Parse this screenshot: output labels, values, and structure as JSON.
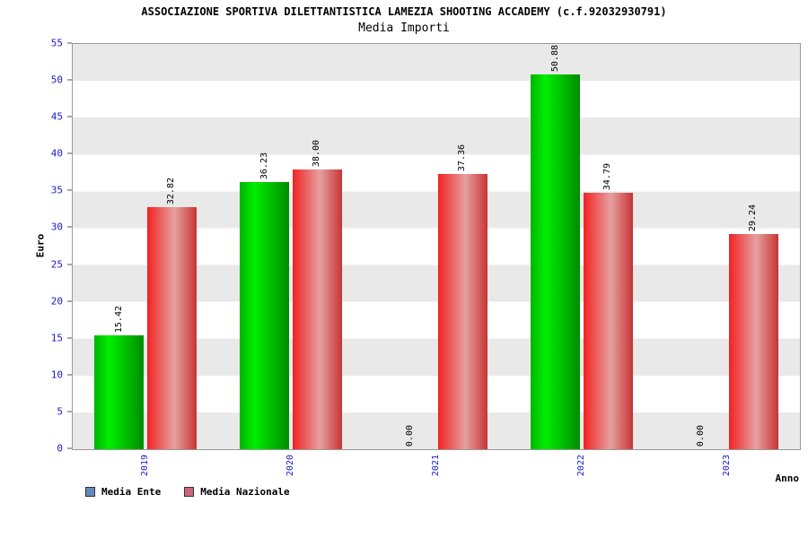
{
  "header": {
    "title": "ASSOCIAZIONE SPORTIVA DILETTANTISTICA LAMEZIA SHOOTING ACCADEMY (c.f.92032930791)",
    "subtitle": "Media Importi"
  },
  "axes": {
    "y_label": "Euro",
    "x_label": "Anno",
    "tick_color": "#1a1acc"
  },
  "legend": [
    {
      "label": "Media Ente",
      "color": "#6688bb"
    },
    {
      "label": "Media Nazionale",
      "color": "#cc6677"
    }
  ],
  "chart_data": {
    "type": "bar",
    "title": "Media Importi",
    "xlabel": "Anno",
    "ylabel": "Euro",
    "categories": [
      "2019",
      "2020",
      "2021",
      "2022",
      "2023"
    ],
    "series": [
      {
        "name": "Media Ente",
        "values": [
          15.42,
          36.23,
          0.0,
          50.88,
          0.0
        ],
        "gradient": [
          "#00b400 0%",
          "#00ee00 30%",
          "#008c00 100%"
        ]
      },
      {
        "name": "Media Nazionale",
        "values": [
          32.82,
          38.0,
          37.36,
          34.79,
          29.24
        ],
        "gradient": [
          "#f22222 0%",
          "#e6a0a0 55%",
          "#c83434 100%"
        ]
      }
    ],
    "ylim": [
      0,
      55
    ],
    "y_tick_step": 5,
    "grid": "banded",
    "legend_position": "bottom-left",
    "band_colors": [
      "#e9e9e9",
      "#ffffff"
    ]
  }
}
